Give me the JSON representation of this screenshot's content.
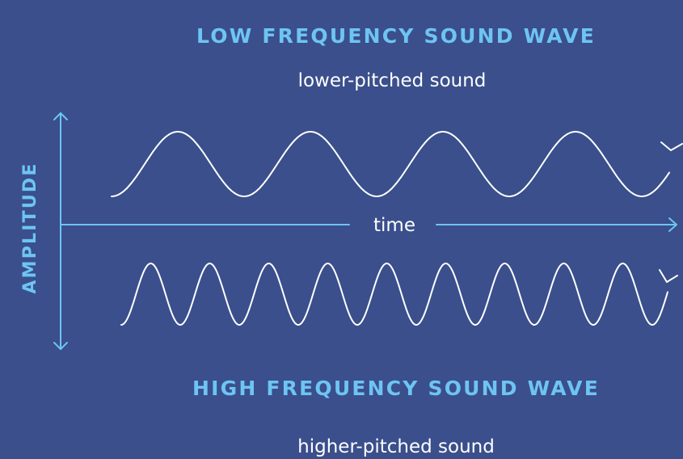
{
  "low_wave": {
    "title": "LOW FREQUENCY SOUND WAVE",
    "subtitle": "lower-pitched sound"
  },
  "high_wave": {
    "title": "HIGH FREQUENCY SOUND WAVE",
    "subtitle": "higher-pitched sound"
  },
  "axes": {
    "x_label": "time",
    "y_label": "AMPLITUDE"
  },
  "colors": {
    "background": "#3a4f8c",
    "accent": "#6ec4f2",
    "wave": "#ffffff"
  }
}
